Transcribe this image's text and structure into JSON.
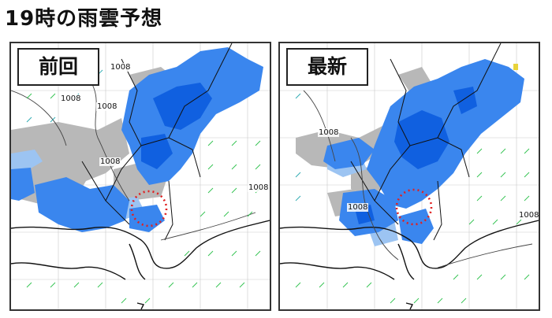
{
  "title": "19時の雨雲予想",
  "panels": [
    {
      "label": "前回",
      "isobar_labels": [
        "1008",
        "1008",
        "1008",
        "1008",
        "1008"
      ]
    },
    {
      "label": "最新",
      "isobar_labels": [
        "1008",
        "1008",
        "1008"
      ]
    }
  ],
  "colors": {
    "heavy_rain": "#1060e0",
    "rain": "#3a86ee",
    "light_rain": "#9cc4f2",
    "cloud": "#b8b8b8",
    "wind_barb": "#2ec24e",
    "wind_barb_sea": "#2aa9b0",
    "coast": "#111111",
    "highlight_circle": "#e02020"
  }
}
